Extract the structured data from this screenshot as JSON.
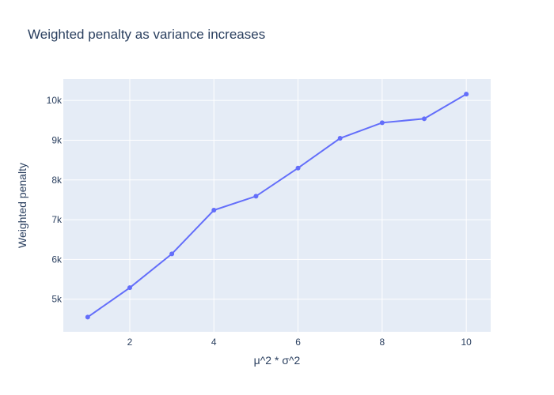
{
  "chart_data": {
    "type": "line",
    "title": "Weighted penalty as variance increases",
    "xlabel": "μ^2 * σ^2",
    "ylabel": "Weighted penalty",
    "x": [
      1,
      2,
      3,
      4,
      5,
      6,
      7,
      8,
      9,
      10
    ],
    "series": [
      {
        "values": [
          4550,
          5290,
          6140,
          7240,
          7590,
          8300,
          9050,
          9440,
          9540,
          10160
        ]
      }
    ],
    "xlim": [
      0.42,
      10.58
    ],
    "ylim": [
      4180,
      10540
    ],
    "x_ticks": [
      2,
      4,
      6,
      8,
      10
    ],
    "x_tick_labels": [
      "2",
      "4",
      "6",
      "8",
      "10"
    ],
    "y_ticks": [
      5000,
      6000,
      7000,
      8000,
      9000,
      10000
    ],
    "y_tick_labels": [
      "5k",
      "6k",
      "7k",
      "8k",
      "9k",
      "10k"
    ],
    "grid": true,
    "legend": "none",
    "colors": {
      "plot_bg": "#e5ecf6",
      "grid": "#ffffff",
      "line": "#636efa",
      "text": "#2a3f5f"
    }
  }
}
